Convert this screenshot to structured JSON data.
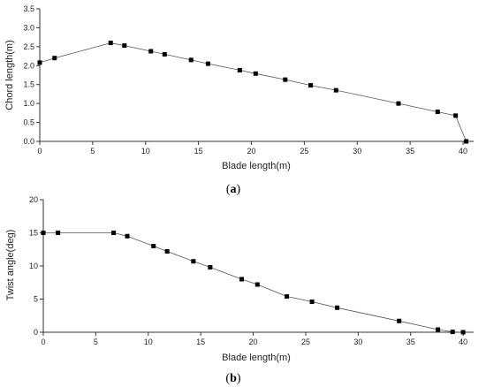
{
  "chart_data": [
    {
      "type": "line",
      "xlabel": "Blade length(m)",
      "ylabel": "Chord length(m)",
      "caption": {
        "open": "(",
        "letter": "a",
        "close": ")"
      },
      "xlim": [
        0,
        41
      ],
      "ylim": [
        0,
        3.5
      ],
      "xticks": [
        0,
        5,
        10,
        15,
        20,
        25,
        30,
        35,
        40
      ],
      "yticks": [
        0.0,
        0.5,
        1.0,
        1.5,
        2.0,
        2.5,
        3.0,
        3.5
      ],
      "xtick_labels": [
        "0",
        "5",
        "10",
        "15",
        "20",
        "25",
        "30",
        "35",
        "40"
      ],
      "ytick_labels": [
        "0.0",
        "0.5",
        "1.0",
        "1.5",
        "2.0",
        "2.5",
        "3.0",
        "3.5"
      ],
      "series": [
        {
          "x": [
            0,
            1.4,
            6.7,
            8.0,
            10.5,
            11.8,
            14.3,
            15.9,
            18.9,
            20.4,
            23.2,
            25.6,
            28.0,
            33.9,
            37.6,
            39.3,
            40.3
          ],
          "y": [
            2.08,
            2.2,
            2.6,
            2.53,
            2.38,
            2.3,
            2.15,
            2.05,
            1.88,
            1.79,
            1.63,
            1.48,
            1.35,
            1.0,
            0.78,
            0.68,
            0.0
          ]
        }
      ]
    },
    {
      "type": "line",
      "xlabel": "Blade length(m)",
      "ylabel": "Twist angle(deg)",
      "caption": {
        "open": "(",
        "letter": "b",
        "close": ")"
      },
      "xlim": [
        0,
        41
      ],
      "ylim": [
        0,
        20
      ],
      "xticks": [
        0,
        5,
        10,
        15,
        20,
        25,
        30,
        35,
        40
      ],
      "yticks": [
        0,
        5,
        10,
        15,
        20
      ],
      "xtick_labels": [
        "0",
        "5",
        "10",
        "15",
        "20",
        "25",
        "30",
        "35",
        "40"
      ],
      "ytick_labels": [
        "0",
        "5",
        "10",
        "15",
        "20"
      ],
      "series": [
        {
          "x": [
            0,
            1.4,
            6.7,
            8.0,
            10.5,
            11.8,
            14.3,
            15.9,
            18.9,
            20.4,
            23.2,
            25.6,
            28.0,
            33.9,
            37.6,
            39.0,
            40.0
          ],
          "y": [
            15.0,
            15.0,
            15.0,
            14.5,
            13.0,
            12.2,
            10.7,
            9.8,
            8.0,
            7.2,
            5.4,
            4.6,
            3.7,
            1.7,
            0.4,
            0.05,
            0.0
          ]
        }
      ]
    }
  ]
}
